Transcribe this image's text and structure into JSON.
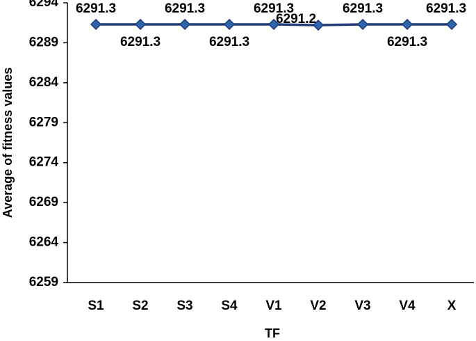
{
  "chart_data": {
    "type": "line",
    "x_label": "TF",
    "y_label": "Average of fitness values",
    "categories": [
      "S1",
      "S2",
      "S3",
      "S4",
      "V1",
      "V2",
      "V3",
      "V4",
      "X"
    ],
    "series": [
      {
        "name": "Average of fitness values",
        "color": "#1f3a78",
        "marker_color": "#2e63b0",
        "values": [
          6291.3,
          6291.3,
          6291.3,
          6291.3,
          6291.3,
          6291.2,
          6291.3,
          6291.3,
          6291.3
        ]
      }
    ],
    "ylim": [
      6259,
      6294
    ],
    "yticks": [
      6259,
      6264,
      6269,
      6274,
      6279,
      6284,
      6289,
      6294
    ],
    "grid": false
  }
}
